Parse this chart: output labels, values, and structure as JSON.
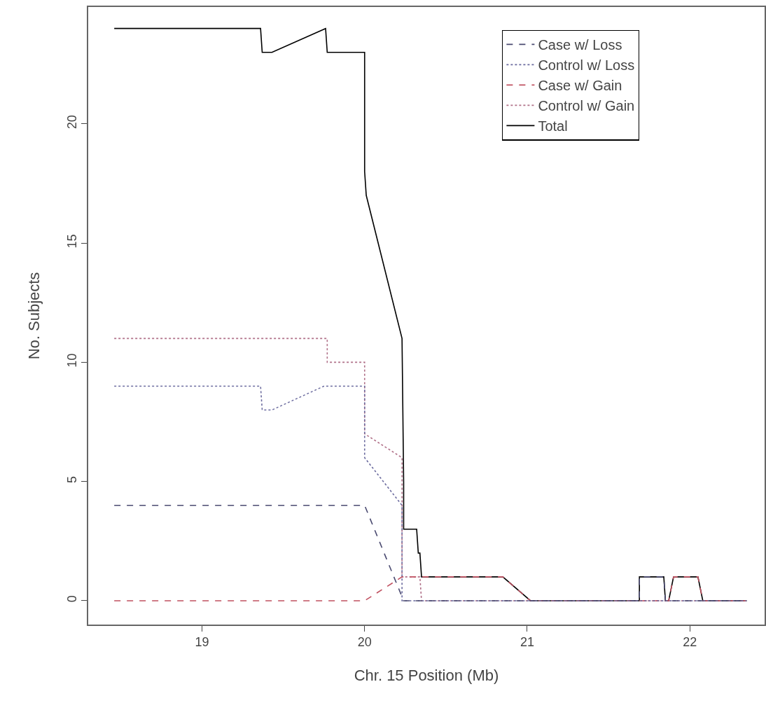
{
  "chart_data": {
    "type": "line",
    "xlabel": "Chr. 15 Position (Mb)",
    "ylabel": "No. Subjects",
    "xlim": [
      18.3,
      22.46
    ],
    "xticks": [
      19,
      20,
      21,
      22
    ],
    "ylim": [
      -1,
      24.9
    ],
    "yticks": [
      0,
      5,
      10,
      15,
      20
    ],
    "grid": false,
    "legend": "top right",
    "marker": "none",
    "series": [
      {
        "name": "Case w/ Loss",
        "color": "#4a4a70",
        "line_style": "dashed",
        "x": [
          18.46,
          20.0,
          20.24,
          21.69,
          21.69,
          21.84,
          21.85,
          22.35
        ],
        "values": [
          4,
          4,
          0,
          0,
          1,
          1,
          0,
          0
        ]
      },
      {
        "name": "Control w/ Loss",
        "color": "#6a6a9e",
        "line_style": "dotted",
        "x": [
          18.46,
          19.36,
          19.37,
          19.43,
          19.75,
          20.0,
          20.0,
          20.23,
          20.23,
          22.35
        ],
        "values": [
          9,
          9,
          8,
          8,
          9,
          9,
          6,
          4,
          0,
          0
        ]
      },
      {
        "name": "Case w/ Gain",
        "color": "#c05060",
        "line_style": "dashed",
        "x": [
          18.46,
          20.0,
          20.23,
          20.85,
          21.02,
          21.87,
          21.9,
          22.05,
          22.08,
          22.35
        ],
        "values": [
          0,
          0,
          1,
          1,
          0,
          0,
          1,
          1,
          0,
          0
        ]
      },
      {
        "name": "Control w/ Gain",
        "color": "#b07088",
        "line_style": "dotted",
        "x": [
          18.46,
          19.77,
          19.77,
          20.0,
          20.0,
          20.23,
          20.23,
          20.34,
          20.35,
          22.35
        ],
        "values": [
          11,
          11,
          10,
          10,
          7,
          6,
          1,
          1,
          0,
          0
        ]
      },
      {
        "name": "Total",
        "color": "#000000",
        "line_style": "solid",
        "x": [
          18.46,
          19.36,
          19.37,
          19.43,
          19.76,
          19.77,
          20.0,
          20.0,
          20.01,
          20.23,
          20.24,
          20.24,
          20.32,
          20.33,
          20.34,
          20.35,
          20.85,
          21.02,
          21.69,
          21.69,
          21.84,
          21.85,
          21.87,
          21.9,
          22.05,
          22.08,
          22.35
        ],
        "values": [
          24,
          24,
          23,
          23,
          24,
          23,
          23,
          18,
          17,
          11,
          5,
          3,
          3,
          2,
          2,
          1,
          1,
          0,
          0,
          1,
          1,
          0,
          0,
          1,
          1,
          0,
          0
        ]
      }
    ]
  }
}
